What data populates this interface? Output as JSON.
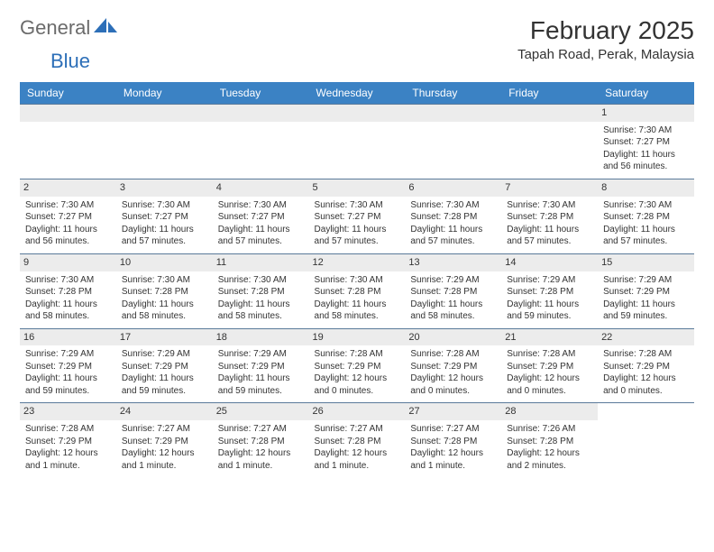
{
  "logo": {
    "text1": "General",
    "text2": "Blue"
  },
  "title": "February 2025",
  "location": "Tapah Road, Perak, Malaysia",
  "colors": {
    "header_bg": "#3b82c4",
    "header_text": "#ffffff",
    "daynum_bg": "#ececec",
    "border": "#5a7a9a",
    "logo_gray": "#6b6b6b",
    "logo_blue": "#2d6fb8",
    "body_text": "#333333",
    "page_bg": "#ffffff"
  },
  "typography": {
    "title_fontsize": 28,
    "location_fontsize": 15,
    "dayheader_fontsize": 12,
    "daynum_fontsize": 11,
    "body_fontsize": 10,
    "font_family": "Arial"
  },
  "day_headers": [
    "Sunday",
    "Monday",
    "Tuesday",
    "Wednesday",
    "Thursday",
    "Friday",
    "Saturday"
  ],
  "weeks": [
    [
      null,
      null,
      null,
      null,
      null,
      null,
      {
        "n": "1",
        "sr": "Sunrise: 7:30 AM",
        "ss": "Sunset: 7:27 PM",
        "dl": "Daylight: 11 hours and 56 minutes."
      }
    ],
    [
      {
        "n": "2",
        "sr": "Sunrise: 7:30 AM",
        "ss": "Sunset: 7:27 PM",
        "dl": "Daylight: 11 hours and 56 minutes."
      },
      {
        "n": "3",
        "sr": "Sunrise: 7:30 AM",
        "ss": "Sunset: 7:27 PM",
        "dl": "Daylight: 11 hours and 57 minutes."
      },
      {
        "n": "4",
        "sr": "Sunrise: 7:30 AM",
        "ss": "Sunset: 7:27 PM",
        "dl": "Daylight: 11 hours and 57 minutes."
      },
      {
        "n": "5",
        "sr": "Sunrise: 7:30 AM",
        "ss": "Sunset: 7:27 PM",
        "dl": "Daylight: 11 hours and 57 minutes."
      },
      {
        "n": "6",
        "sr": "Sunrise: 7:30 AM",
        "ss": "Sunset: 7:28 PM",
        "dl": "Daylight: 11 hours and 57 minutes."
      },
      {
        "n": "7",
        "sr": "Sunrise: 7:30 AM",
        "ss": "Sunset: 7:28 PM",
        "dl": "Daylight: 11 hours and 57 minutes."
      },
      {
        "n": "8",
        "sr": "Sunrise: 7:30 AM",
        "ss": "Sunset: 7:28 PM",
        "dl": "Daylight: 11 hours and 57 minutes."
      }
    ],
    [
      {
        "n": "9",
        "sr": "Sunrise: 7:30 AM",
        "ss": "Sunset: 7:28 PM",
        "dl": "Daylight: 11 hours and 58 minutes."
      },
      {
        "n": "10",
        "sr": "Sunrise: 7:30 AM",
        "ss": "Sunset: 7:28 PM",
        "dl": "Daylight: 11 hours and 58 minutes."
      },
      {
        "n": "11",
        "sr": "Sunrise: 7:30 AM",
        "ss": "Sunset: 7:28 PM",
        "dl": "Daylight: 11 hours and 58 minutes."
      },
      {
        "n": "12",
        "sr": "Sunrise: 7:30 AM",
        "ss": "Sunset: 7:28 PM",
        "dl": "Daylight: 11 hours and 58 minutes."
      },
      {
        "n": "13",
        "sr": "Sunrise: 7:29 AM",
        "ss": "Sunset: 7:28 PM",
        "dl": "Daylight: 11 hours and 58 minutes."
      },
      {
        "n": "14",
        "sr": "Sunrise: 7:29 AM",
        "ss": "Sunset: 7:28 PM",
        "dl": "Daylight: 11 hours and 59 minutes."
      },
      {
        "n": "15",
        "sr": "Sunrise: 7:29 AM",
        "ss": "Sunset: 7:29 PM",
        "dl": "Daylight: 11 hours and 59 minutes."
      }
    ],
    [
      {
        "n": "16",
        "sr": "Sunrise: 7:29 AM",
        "ss": "Sunset: 7:29 PM",
        "dl": "Daylight: 11 hours and 59 minutes."
      },
      {
        "n": "17",
        "sr": "Sunrise: 7:29 AM",
        "ss": "Sunset: 7:29 PM",
        "dl": "Daylight: 11 hours and 59 minutes."
      },
      {
        "n": "18",
        "sr": "Sunrise: 7:29 AM",
        "ss": "Sunset: 7:29 PM",
        "dl": "Daylight: 11 hours and 59 minutes."
      },
      {
        "n": "19",
        "sr": "Sunrise: 7:28 AM",
        "ss": "Sunset: 7:29 PM",
        "dl": "Daylight: 12 hours and 0 minutes."
      },
      {
        "n": "20",
        "sr": "Sunrise: 7:28 AM",
        "ss": "Sunset: 7:29 PM",
        "dl": "Daylight: 12 hours and 0 minutes."
      },
      {
        "n": "21",
        "sr": "Sunrise: 7:28 AM",
        "ss": "Sunset: 7:29 PM",
        "dl": "Daylight: 12 hours and 0 minutes."
      },
      {
        "n": "22",
        "sr": "Sunrise: 7:28 AM",
        "ss": "Sunset: 7:29 PM",
        "dl": "Daylight: 12 hours and 0 minutes."
      }
    ],
    [
      {
        "n": "23",
        "sr": "Sunrise: 7:28 AM",
        "ss": "Sunset: 7:29 PM",
        "dl": "Daylight: 12 hours and 1 minute."
      },
      {
        "n": "24",
        "sr": "Sunrise: 7:27 AM",
        "ss": "Sunset: 7:29 PM",
        "dl": "Daylight: 12 hours and 1 minute."
      },
      {
        "n": "25",
        "sr": "Sunrise: 7:27 AM",
        "ss": "Sunset: 7:28 PM",
        "dl": "Daylight: 12 hours and 1 minute."
      },
      {
        "n": "26",
        "sr": "Sunrise: 7:27 AM",
        "ss": "Sunset: 7:28 PM",
        "dl": "Daylight: 12 hours and 1 minute."
      },
      {
        "n": "27",
        "sr": "Sunrise: 7:27 AM",
        "ss": "Sunset: 7:28 PM",
        "dl": "Daylight: 12 hours and 1 minute."
      },
      {
        "n": "28",
        "sr": "Sunrise: 7:26 AM",
        "ss": "Sunset: 7:28 PM",
        "dl": "Daylight: 12 hours and 2 minutes."
      },
      null
    ]
  ]
}
